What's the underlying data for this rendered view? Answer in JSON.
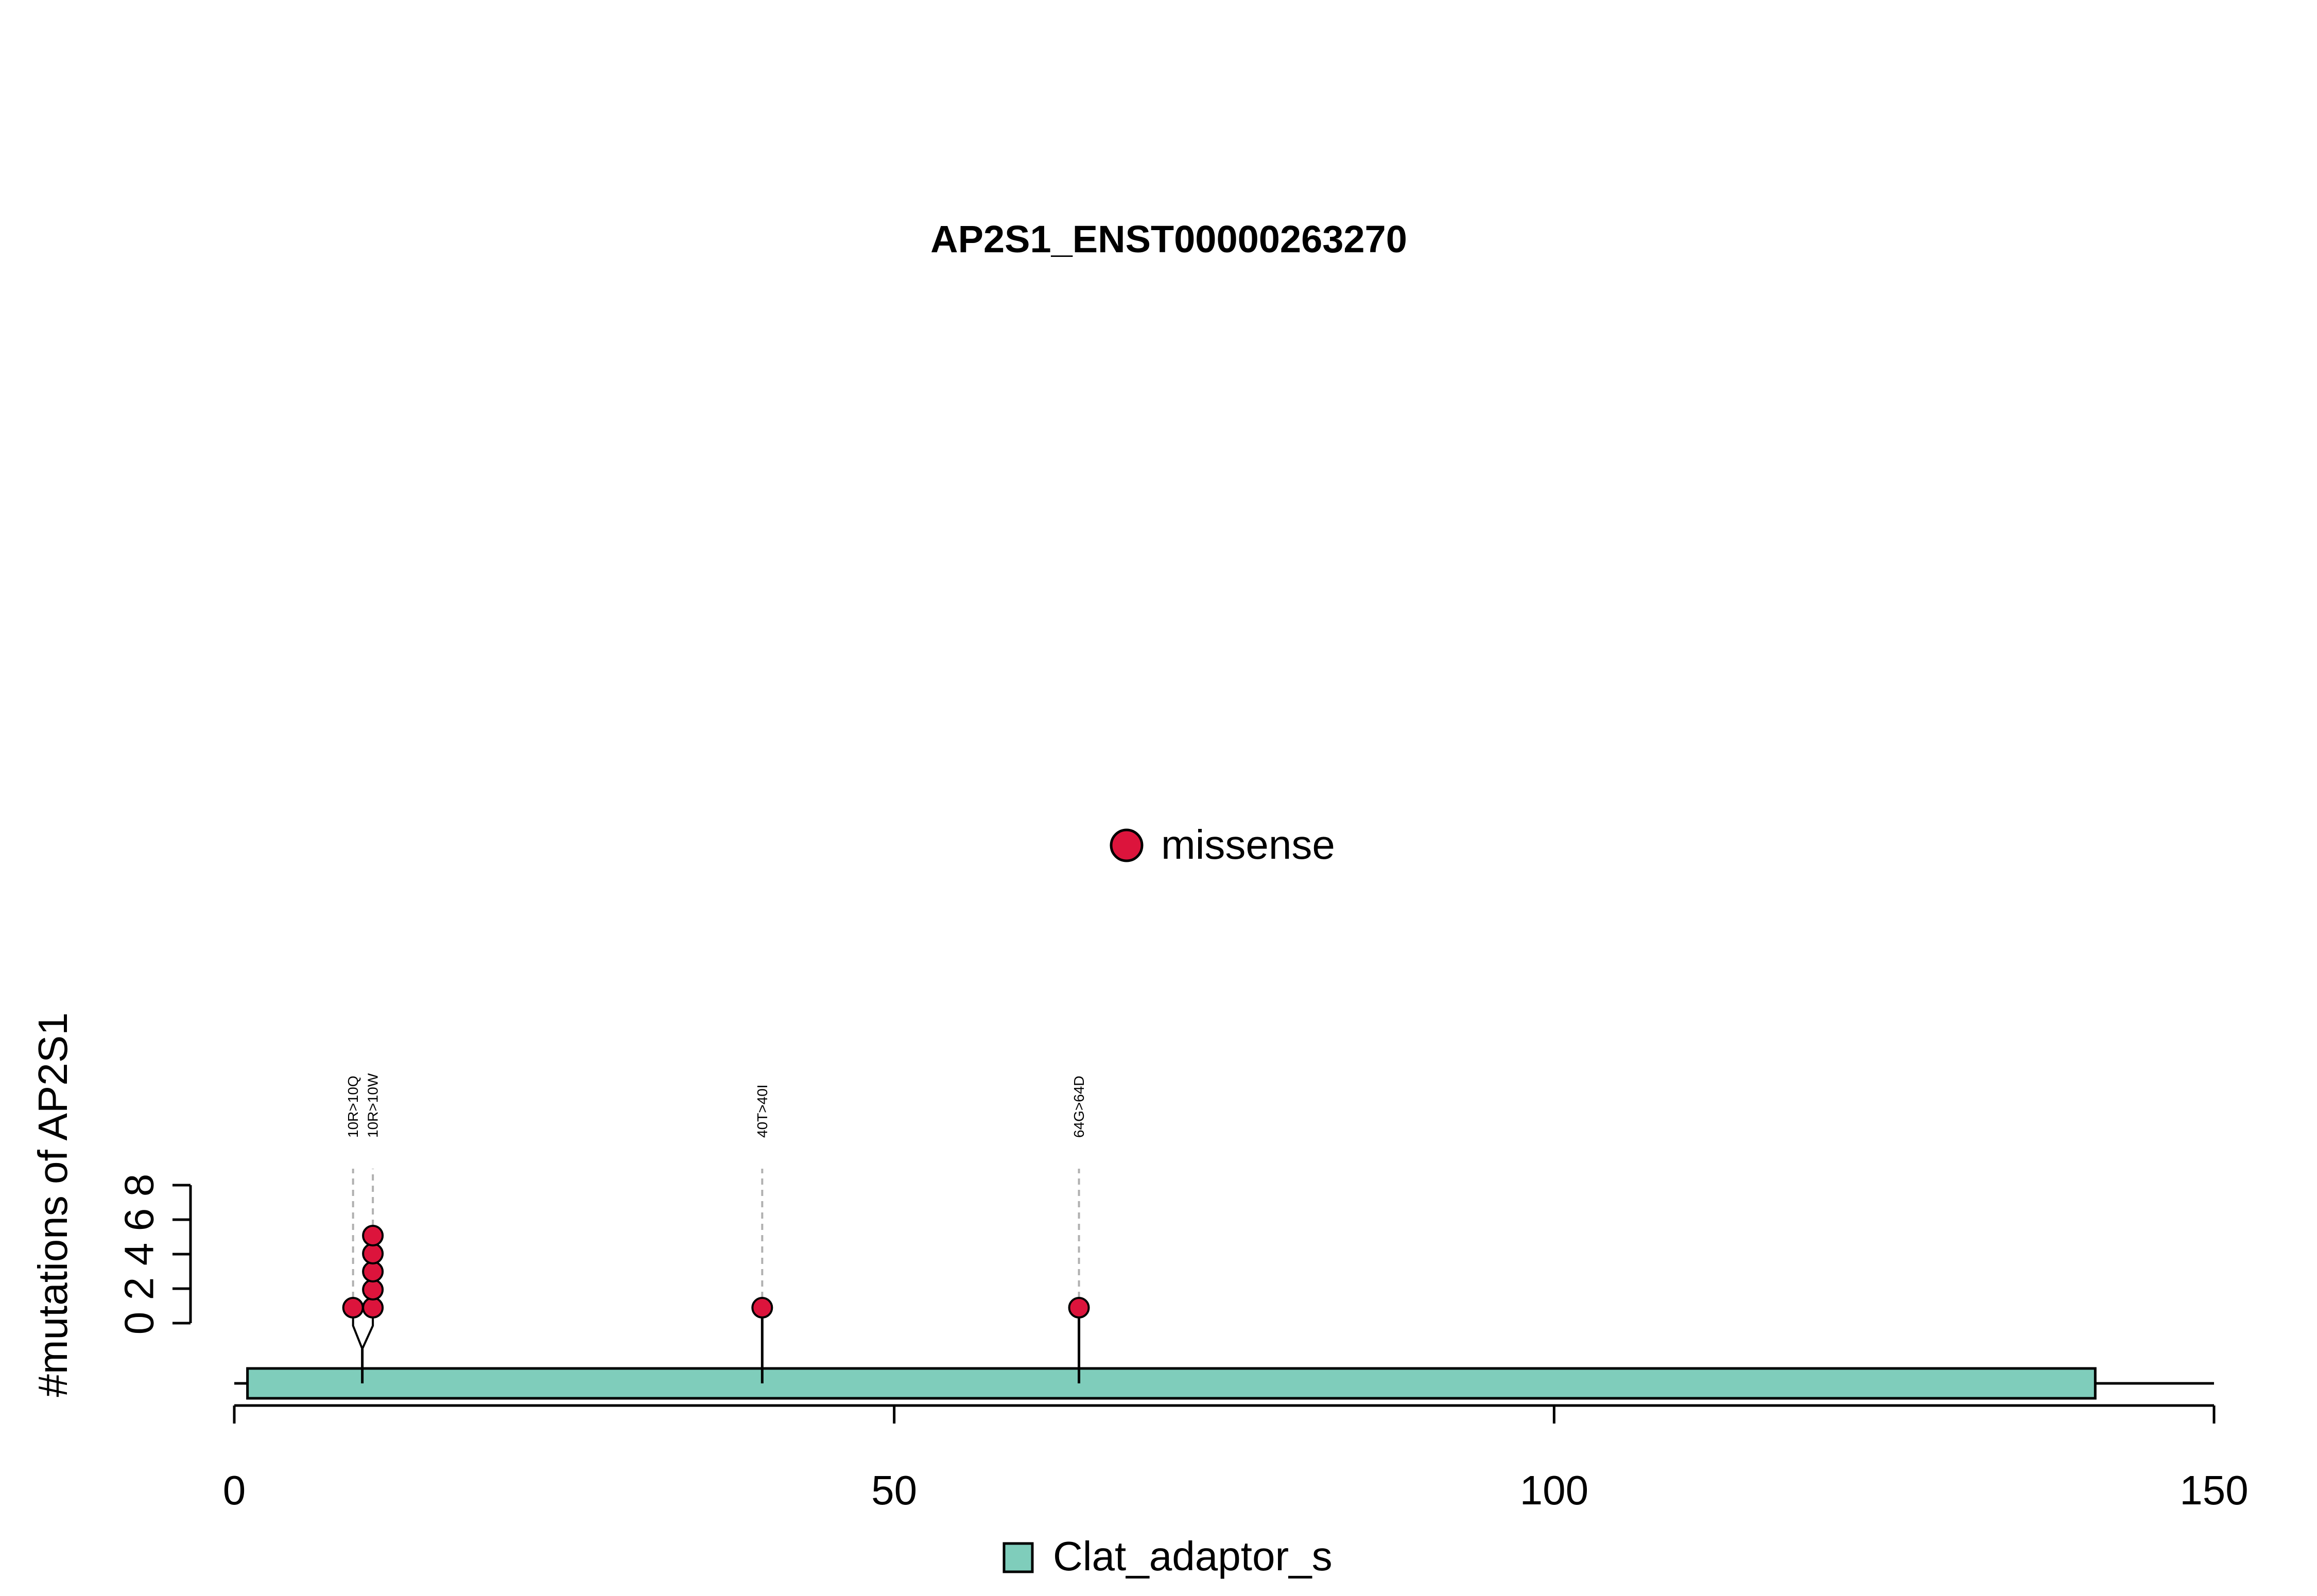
{
  "chart_data": {
    "type": "lollipop",
    "title": "AP2S1_ENST00000263270",
    "xlabel": "",
    "ylabel": "#mutations of AP2S1",
    "xlim": [
      0,
      150
    ],
    "x_ticks": [
      0,
      50,
      100,
      150
    ],
    "ylim": [
      0,
      8
    ],
    "y_ticks": [
      0,
      2,
      4,
      6,
      8
    ],
    "protein_length": 142,
    "legend_mutation": {
      "label": "missense",
      "color": "#DC143C",
      "placement": "top-center"
    },
    "mutations": [
      {
        "position": 9,
        "label": "10R>10Q",
        "count": 1,
        "type": "missense"
      },
      {
        "position": 10.5,
        "label": "10R>10W",
        "count": 5,
        "type": "missense"
      },
      {
        "position": 40,
        "label": "40T>40I",
        "count": 1,
        "type": "missense"
      },
      {
        "position": 64,
        "label": "64G>64D",
        "count": 1,
        "type": "missense"
      }
    ],
    "domains": [
      {
        "name": "Clat_adaptor_s",
        "start": 1,
        "end": 141,
        "color": "#7FCDBB"
      }
    ],
    "legend_domain": {
      "placement": "bottom-center"
    }
  }
}
